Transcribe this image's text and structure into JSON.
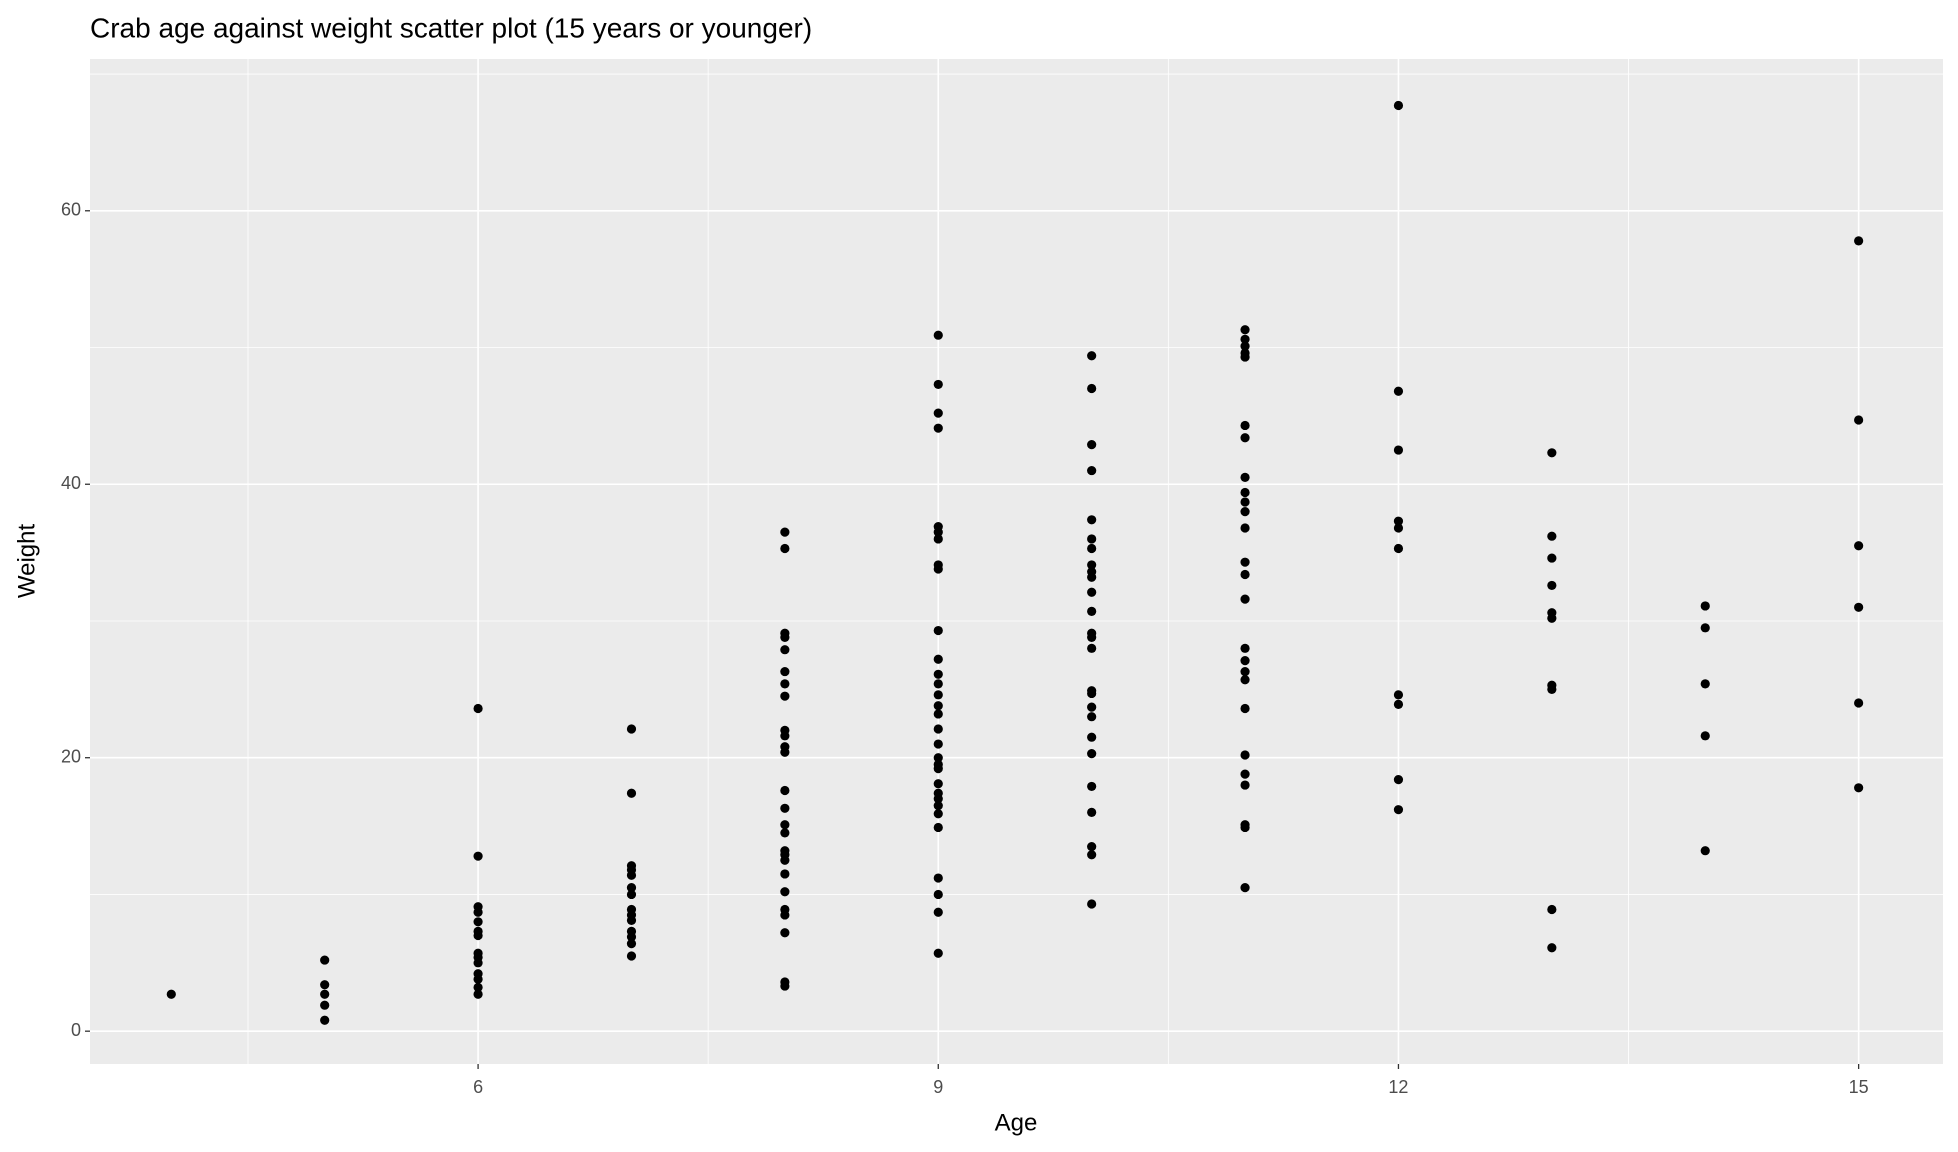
{
  "chart_data": {
    "type": "scatter",
    "title": "Crab age against weight scatter plot (15 years or younger)",
    "x_label": "Age",
    "y_label": "Weight",
    "xlim": [
      3.47,
      15.55
    ],
    "ylim": [
      -2.4,
      71.1
    ],
    "xticks": [
      6,
      9,
      12,
      15
    ],
    "yticks": [
      0,
      20,
      40,
      60
    ],
    "minor_xgrid": [
      4.5,
      7.5,
      10.5,
      13.5
    ],
    "minor_ygrid": [
      10,
      30,
      50,
      70
    ],
    "grid": true,
    "background": "#ebebeb",
    "series": [
      {
        "color": "#000000",
        "x": [
          4,
          5,
          5,
          5,
          5,
          5,
          6,
          6,
          6,
          6,
          6,
          6,
          6,
          6,
          6,
          6,
          6,
          6,
          6,
          6,
          7,
          7,
          7,
          7,
          7,
          7,
          7,
          7,
          7,
          7,
          7,
          7,
          7,
          7,
          8,
          8,
          8,
          8,
          8,
          8,
          8,
          8,
          8,
          8,
          8,
          8,
          8,
          8,
          8,
          8,
          8,
          8,
          8,
          8,
          8,
          8,
          8,
          8,
          8,
          8,
          9,
          9,
          9,
          9,
          9,
          9,
          9,
          9,
          9,
          9,
          9,
          9,
          9,
          9,
          9,
          9,
          9,
          9,
          9,
          9,
          9,
          9,
          9,
          9,
          9,
          9,
          9,
          9,
          9,
          9,
          9,
          10,
          10,
          10,
          10,
          10,
          10,
          10,
          10,
          10,
          10,
          10,
          10,
          10,
          10,
          10,
          10,
          10,
          10,
          10,
          10,
          10,
          10,
          10,
          10,
          10,
          10,
          11,
          11,
          11,
          11,
          11,
          11,
          11,
          11,
          11,
          11,
          11,
          11,
          11,
          11,
          11,
          11,
          11,
          11,
          11,
          11,
          11,
          11,
          11,
          11,
          11,
          11,
          12,
          12,
          12,
          12,
          12,
          12,
          12,
          12,
          12,
          12,
          13,
          13,
          13,
          13,
          13,
          13,
          13,
          13,
          13,
          13,
          14,
          14,
          14,
          14,
          14,
          15,
          15,
          15,
          15,
          15,
          15
        ],
        "values": [
          2.7,
          5.2,
          3.4,
          2.7,
          1.9,
          0.8,
          23.6,
          12.8,
          9.1,
          8.7,
          8.0,
          7.3,
          7.0,
          5.7,
          5.4,
          5.0,
          4.2,
          3.8,
          3.2,
          2.7,
          22.1,
          17.4,
          12.1,
          11.8,
          11.4,
          10.5,
          10.0,
          8.9,
          8.5,
          8.1,
          7.3,
          6.9,
          6.4,
          5.5,
          36.5,
          35.3,
          29.1,
          28.8,
          27.9,
          26.3,
          25.4,
          24.5,
          22.0,
          21.6,
          20.8,
          20.4,
          17.6,
          16.3,
          15.1,
          14.5,
          13.2,
          12.9,
          12.5,
          11.5,
          10.2,
          8.9,
          8.5,
          7.2,
          3.6,
          3.3,
          50.9,
          47.3,
          45.2,
          44.1,
          36.9,
          36.5,
          36.0,
          34.1,
          33.8,
          29.3,
          27.2,
          26.1,
          25.4,
          24.6,
          23.8,
          23.2,
          22.1,
          21.0,
          20.0,
          19.5,
          19.2,
          18.1,
          17.4,
          17.0,
          16.5,
          15.9,
          14.9,
          11.2,
          10.0,
          8.7,
          5.7,
          49.4,
          47.0,
          42.9,
          41.0,
          37.4,
          36.0,
          35.3,
          34.1,
          33.6,
          33.2,
          32.1,
          30.7,
          29.1,
          28.8,
          28.0,
          24.9,
          24.7,
          23.7,
          23.0,
          21.5,
          20.3,
          17.9,
          16.0,
          13.5,
          12.9,
          9.3,
          51.3,
          50.6,
          50.1,
          49.6,
          49.3,
          44.3,
          43.4,
          40.5,
          39.4,
          38.7,
          38.0,
          36.8,
          34.3,
          33.4,
          31.6,
          28.0,
          27.1,
          26.3,
          25.7,
          23.6,
          20.2,
          18.8,
          18.0,
          15.1,
          14.9,
          10.5,
          67.7,
          46.8,
          42.5,
          37.3,
          36.8,
          35.3,
          24.6,
          23.9,
          18.4,
          16.2,
          42.3,
          36.2,
          34.6,
          32.6,
          30.6,
          30.2,
          25.3,
          25.0,
          8.9,
          6.1,
          31.1,
          29.5,
          25.4,
          21.6,
          13.2,
          57.8,
          44.7,
          35.5,
          31.0,
          24.0,
          17.8
        ]
      }
    ]
  }
}
